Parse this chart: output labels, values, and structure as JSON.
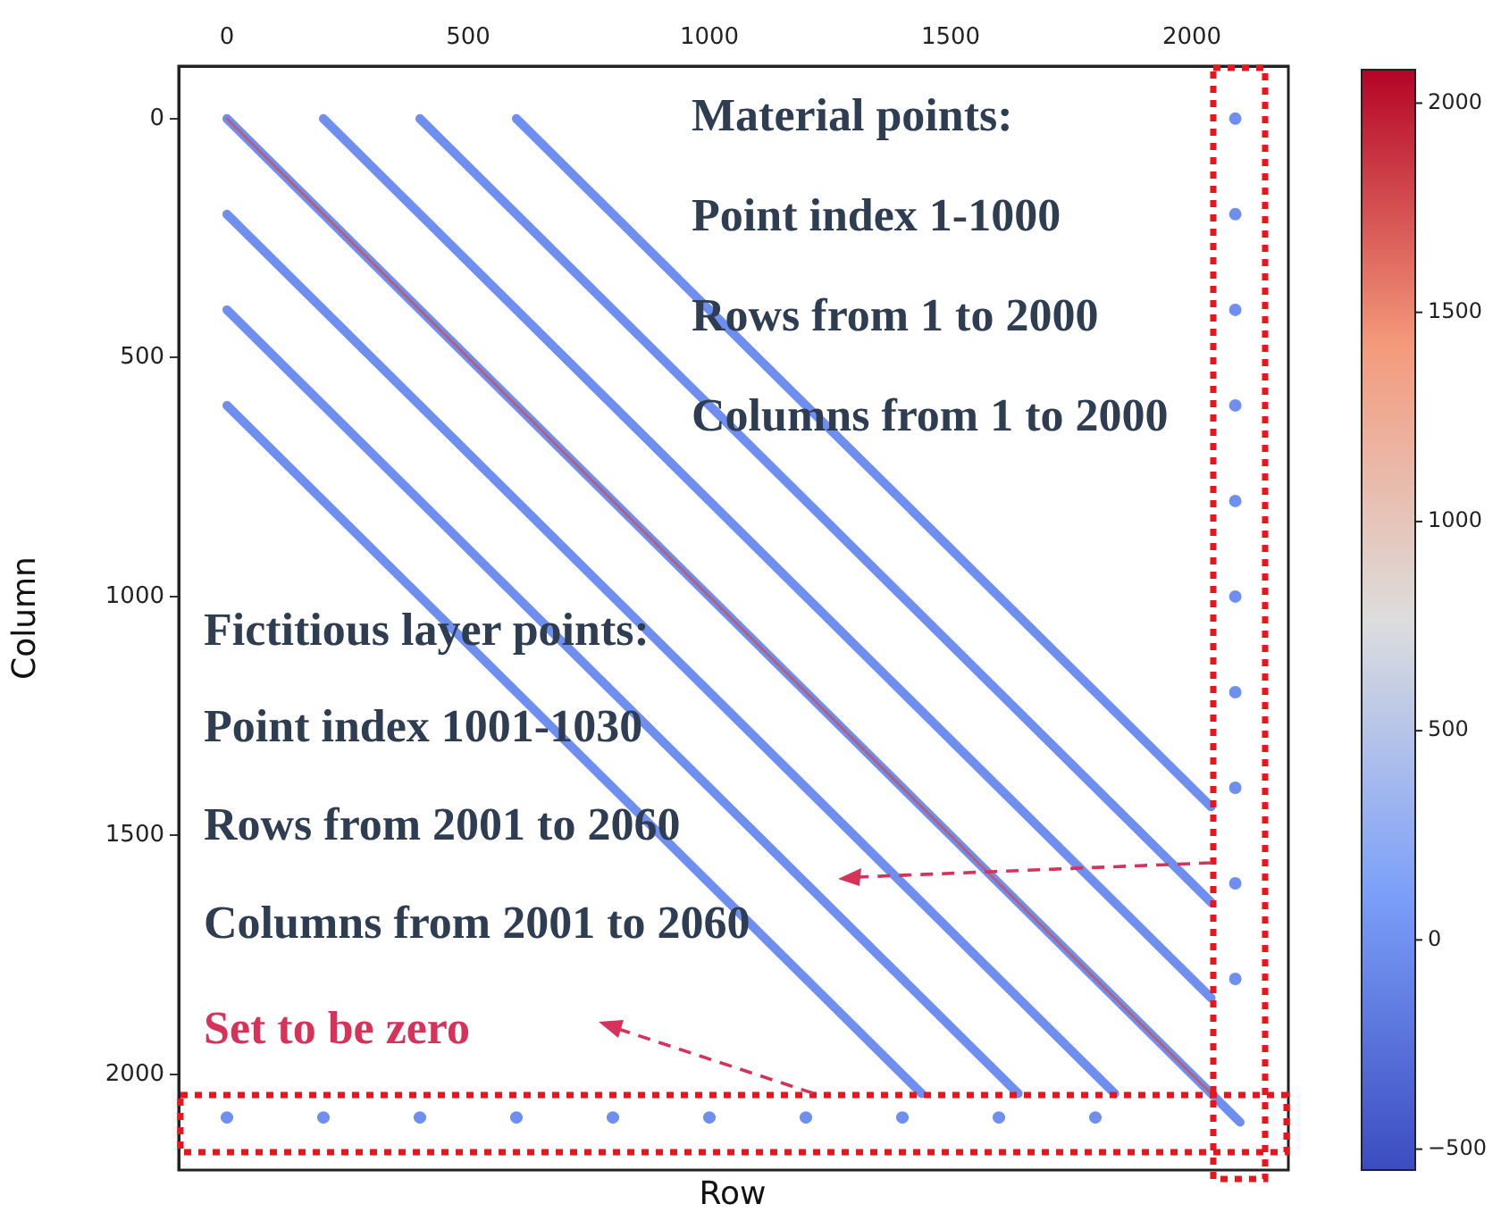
{
  "chart_data": {
    "type": "line",
    "xlabel": "Row",
    "ylabel": "Column",
    "annotations": [
      "Material points:",
      "Point index 1-1000",
      "Rows from 1 to 2000",
      "Columns from 1 to 2000",
      "Fictitious layer points:",
      "Point index 1001-1030",
      "Rows from 2001 to 2060",
      "Columns from 2001 to 2060",
      "Set to be zero"
    ],
    "series": [
      {
        "color": "#6f8ff0",
        "x": [
          0,
          2100
        ],
        "values": [
          0,
          2100
        ]
      },
      {
        "color": "#6f8ff0",
        "x": [
          200,
          2040
        ],
        "values": [
          0,
          1840
        ]
      },
      {
        "color": "#6f8ff0",
        "x": [
          400,
          2040
        ],
        "values": [
          0,
          1640
        ]
      },
      {
        "color": "#6f8ff0",
        "x": [
          600,
          2040
        ],
        "values": [
          0,
          1440
        ]
      },
      {
        "color": "#6f8ff0",
        "x": [
          0,
          1840
        ],
        "values": [
          200,
          2040
        ]
      },
      {
        "color": "#6f8ff0",
        "x": [
          0,
          1640
        ],
        "values": [
          400,
          2040
        ]
      },
      {
        "color": "#6f8ff0",
        "x": [
          0,
          1440
        ],
        "values": [
          600,
          2040
        ]
      },
      {
        "type": "scatter",
        "marker": "circle",
        "x": [
          2090,
          2090,
          2090,
          2090,
          2090,
          2090,
          2090,
          2090,
          2090,
          2090
        ],
        "values": [
          0,
          200,
          400,
          600,
          800,
          1000,
          1200,
          1400,
          1600,
          1800
        ],
        "color": "#6f8ff0"
      },
      {
        "type": "scatter",
        "marker": "circle",
        "x": [
          0,
          200,
          400,
          600,
          800,
          1000,
          1200,
          1400,
          1600,
          1800
        ],
        "values": [
          2090,
          2090,
          2090,
          2090,
          2090,
          2090,
          2090,
          2090,
          2090,
          2090
        ],
        "color": "#6f8ff0"
      },
      {
        "color": "#b4607a",
        "x": [
          0,
          2040
        ],
        "values": [
          0,
          2040
        ]
      }
    ],
    "grid": false,
    "legend": false,
    "xlim": [
      -100,
      2200
    ],
    "xticks": [
      0,
      500,
      1000,
      1500,
      2000
    ],
    "ylim": [
      2200,
      -110
    ],
    "yticks": [
      0,
      500,
      1000,
      1500,
      2000
    ],
    "clim": [
      -550,
      2080
    ],
    "cticks": [
      -500,
      0,
      500,
      1000,
      1500,
      2000
    ]
  }
}
